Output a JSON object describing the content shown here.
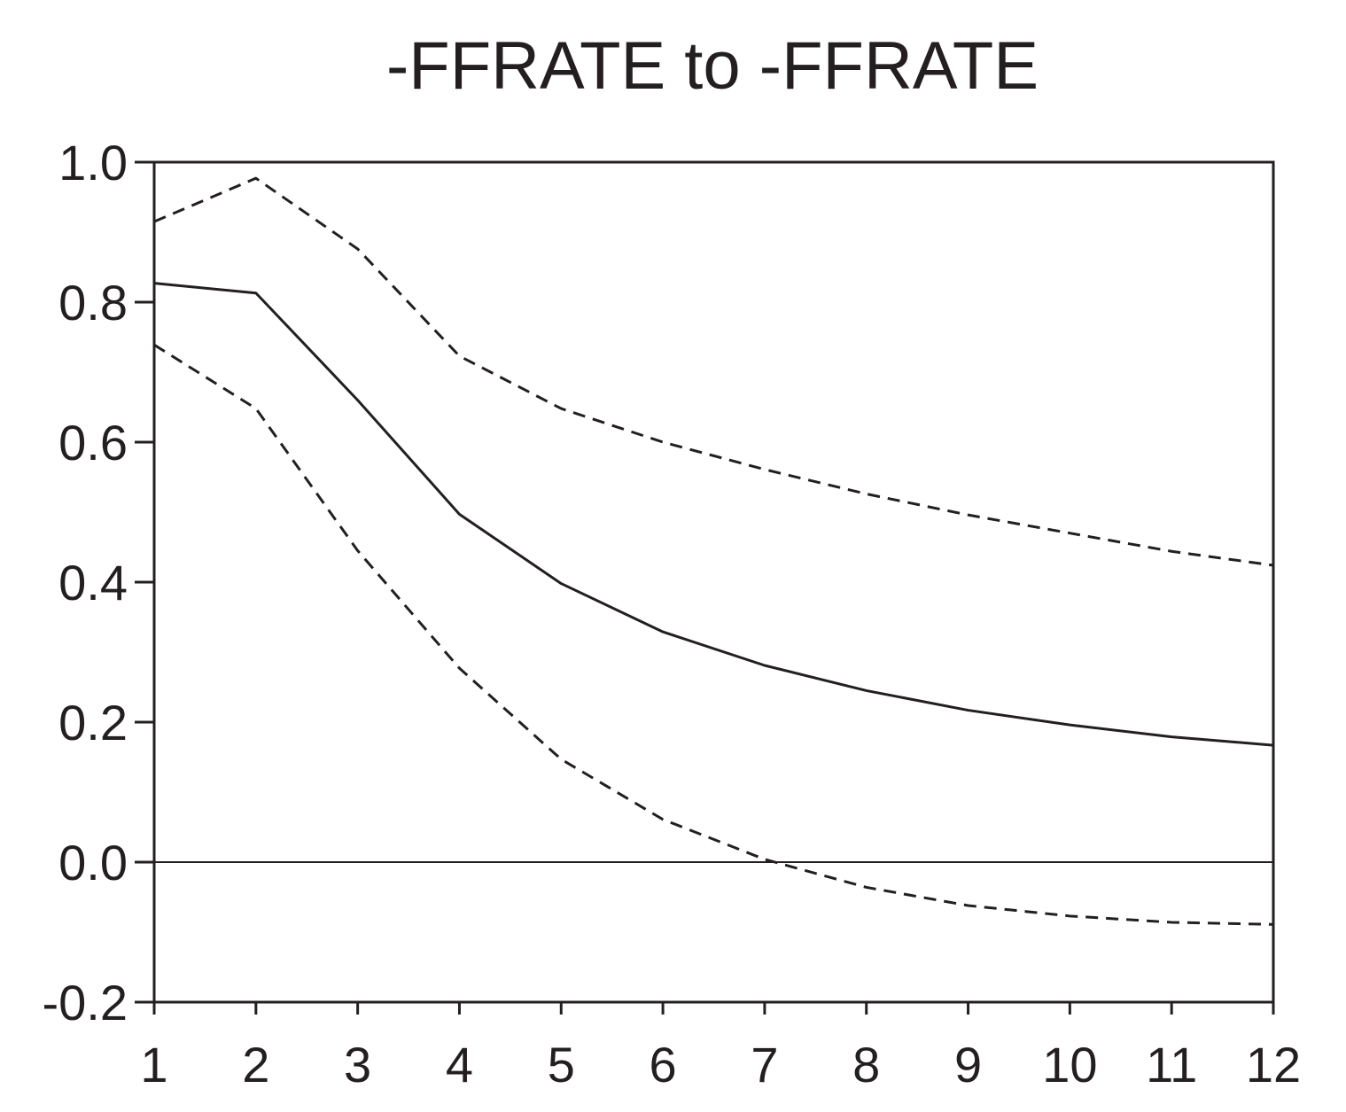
{
  "chart_data": {
    "type": "line",
    "title": "-FFRATE to -FFRATE",
    "xlabel": "",
    "ylabel": "",
    "x": [
      1,
      2,
      3,
      4,
      5,
      6,
      7,
      8,
      9,
      10,
      11,
      12
    ],
    "xlim": [
      1,
      12
    ],
    "ylim": [
      -0.2,
      1.0
    ],
    "y_ticks": [
      "-0.2",
      "0.0",
      "0.2",
      "0.4",
      "0.6",
      "0.8",
      "1.0"
    ],
    "x_ticks": [
      "1",
      "2",
      "3",
      "4",
      "5",
      "6",
      "7",
      "8",
      "9",
      "10",
      "11",
      "12"
    ],
    "zero_line": true,
    "grid": false,
    "series": [
      {
        "style": "solid",
        "values": [
          0.827,
          0.813,
          0.66,
          0.497,
          0.398,
          0.329,
          0.281,
          0.245,
          0.217,
          0.196,
          0.179,
          0.167
        ]
      },
      {
        "style": "dashed",
        "values": [
          0.915,
          0.977,
          0.876,
          0.723,
          0.648,
          0.6,
          0.561,
          0.526,
          0.496,
          0.47,
          0.444,
          0.424
        ]
      },
      {
        "style": "dashed",
        "values": [
          0.739,
          0.648,
          0.445,
          0.277,
          0.147,
          0.061,
          0.004,
          -0.036,
          -0.062,
          -0.077,
          -0.086,
          -0.089
        ]
      }
    ],
    "colors": {
      "line": "#231f20",
      "frame": "#231f20"
    }
  }
}
